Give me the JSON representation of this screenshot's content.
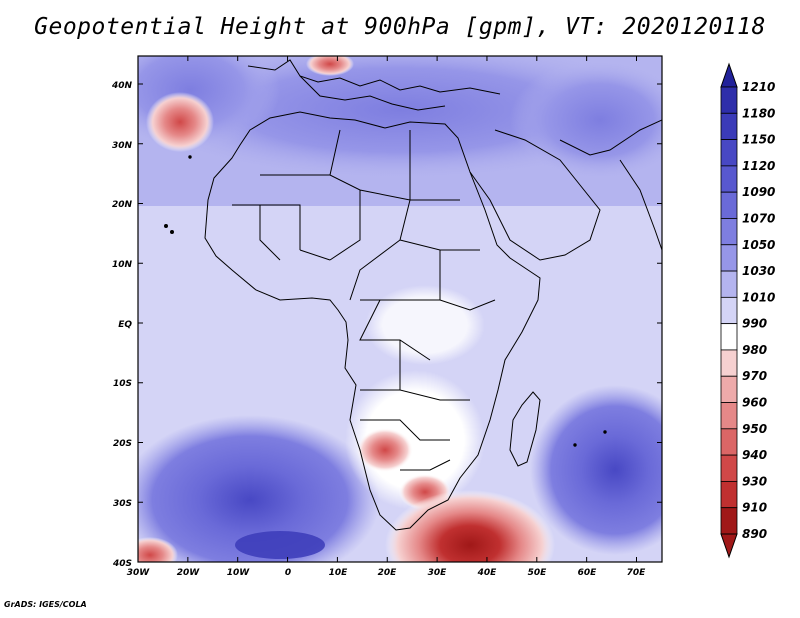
{
  "title": "Geopotential Height at 900hPa [gpm], VT: 2020120118",
  "credit": "GrADS: IGES/COLA",
  "lat_labels": [
    "40N",
    "30N",
    "20N",
    "10N",
    "EQ",
    "10S",
    "20S",
    "30S",
    "40S"
  ],
  "lon_labels": [
    "30W",
    "20W",
    "10W",
    "0",
    "10E",
    "20E",
    "30E",
    "40E",
    "50E",
    "60E",
    "70E"
  ],
  "colorbar": {
    "levels": [
      "1210",
      "1180",
      "1150",
      "1120",
      "1090",
      "1070",
      "1050",
      "1030",
      "1010",
      "990",
      "980",
      "970",
      "960",
      "950",
      "940",
      "930",
      "910",
      "890"
    ],
    "colors": [
      "#22229a",
      "#2e2eaa",
      "#3b3bb8",
      "#4848c4",
      "#5858cf",
      "#6a6ad8",
      "#7e7ee0",
      "#9696e8",
      "#b4b4ef",
      "#d4d4f6",
      "#ffffff",
      "#f6d0d0",
      "#eeaaaa",
      "#e58888",
      "#db6666",
      "#d04848",
      "#c03030",
      "#a01818"
    ]
  },
  "colors": {
    "background_field": "#d4d4f6",
    "low_center": "#a01818",
    "high_center": "#3b3bb8"
  }
}
